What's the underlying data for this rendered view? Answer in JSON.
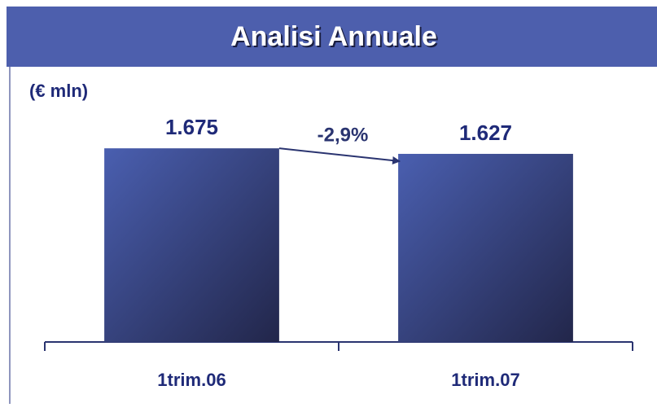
{
  "chart_data": {
    "type": "bar",
    "title": "Analisi Annuale",
    "unit_label": "(€ mln)",
    "categories": [
      "1trim.06",
      "1trim.07"
    ],
    "values": [
      1675,
      1627
    ],
    "value_labels": [
      "1.675",
      "1.627"
    ],
    "annotation": "-2,9%",
    "ylim": [
      0,
      2000
    ],
    "color": "#4a5fb0"
  }
}
